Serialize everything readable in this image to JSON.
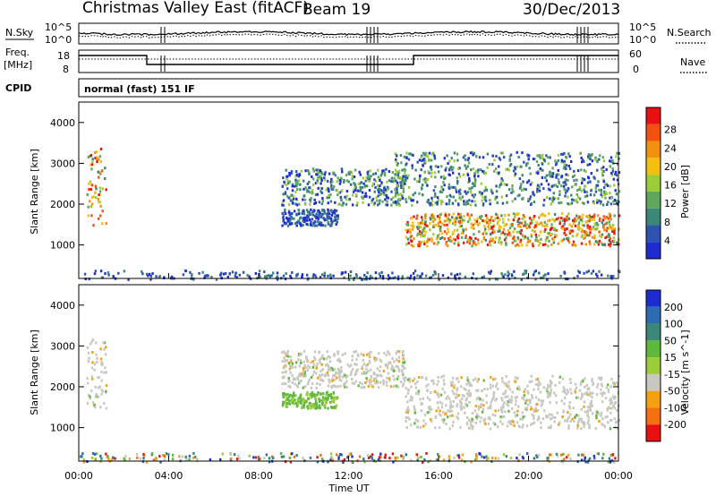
{
  "header": {
    "site": "Christmas Valley East (fitACF)",
    "beam": "Beam 19",
    "date": "30/Dec/2013"
  },
  "strip_sky": {
    "left_label": "N.Sky",
    "right_label": "N.Search",
    "left_ticks": [
      "10^5",
      "10^0"
    ],
    "right_ticks": [
      "10^5",
      "10^0"
    ]
  },
  "strip_freq": {
    "left_label_1": "Freq.",
    "left_label_2": "[MHz]",
    "right_label": "Nave",
    "left_ticks": [
      "18",
      "8"
    ],
    "right_ticks": [
      "60",
      "0"
    ]
  },
  "cpid": {
    "label": "CPID",
    "mode": "normal (fast) 151 IF"
  },
  "chart_data": [
    {
      "type": "heatmap",
      "ylabel": "Slant Range [km]",
      "xlabel": "Time UT",
      "x_ticks": [
        "00:00",
        "04:00",
        "08:00",
        "12:00",
        "16:00",
        "20:00",
        "00:00"
      ],
      "y_ticks": [
        "1000",
        "2000",
        "3000",
        "4000"
      ],
      "x_range_hours": [
        0,
        24
      ],
      "y_range_km": [
        180,
        4500
      ],
      "colorbar_label": "Power [dB]",
      "colorbar_ticks": [
        "4",
        "8",
        "12",
        "16",
        "20",
        "24",
        "28"
      ],
      "colorbar_colors": [
        "#1c2cd0",
        "#2c54b0",
        "#3c8878",
        "#5ea85e",
        "#9ccc3c",
        "#f4c010",
        "#f49010",
        "#f45010",
        "#e81010"
      ],
      "features": [
        {
          "name": "early-echo",
          "t": [
            0.3,
            1.2
          ],
          "r": [
            1500,
            3400
          ],
          "level": "high"
        },
        {
          "name": "band-upper",
          "t": [
            9.0,
            14.5
          ],
          "r": [
            2000,
            2900
          ],
          "level": "mid"
        },
        {
          "name": "band-lower",
          "t": [
            9.0,
            11.5
          ],
          "r": [
            1500,
            1900
          ],
          "level": "low"
        },
        {
          "name": "strong-evening",
          "t": [
            14.5,
            24.0
          ],
          "r": [
            1000,
            1800
          ],
          "level": "high"
        },
        {
          "name": "evening-upper",
          "t": [
            14.0,
            24.0
          ],
          "r": [
            2000,
            3300
          ],
          "level": "mid"
        },
        {
          "name": "near-range",
          "t": [
            0.0,
            24.0
          ],
          "r": [
            180,
            400
          ],
          "level": "low"
        }
      ]
    },
    {
      "type": "heatmap",
      "ylabel": "Slant Range [km]",
      "xlabel": "Time UT",
      "x_ticks": [
        "00:00",
        "04:00",
        "08:00",
        "12:00",
        "16:00",
        "20:00",
        "00:00"
      ],
      "y_ticks": [
        "1000",
        "2000",
        "3000",
        "4000"
      ],
      "x_range_hours": [
        0,
        24
      ],
      "y_range_km": [
        180,
        4500
      ],
      "colorbar_label": "Velocity [m s^-1]",
      "colorbar_ticks": [
        "200",
        "100",
        "50",
        "15",
        "-15",
        "-50",
        "-100",
        "-200"
      ],
      "colorbar_colors": [
        "#1c2cd0",
        "#2c6cb0",
        "#3c8878",
        "#5eb83c",
        "#9ccc3c",
        "#c8c8c0",
        "#f4a010",
        "#f47010",
        "#e81010"
      ],
      "features": [
        {
          "name": "ground-scatter-early",
          "t": [
            0.3,
            1.2
          ],
          "r": [
            1500,
            3200
          ],
          "level": "gs"
        },
        {
          "name": "band-upper",
          "t": [
            9.0,
            14.5
          ],
          "r": [
            2000,
            2900
          ],
          "level": "gs"
        },
        {
          "name": "band-lower",
          "t": [
            9.0,
            11.5
          ],
          "r": [
            1500,
            1900
          ],
          "level": "pos"
        },
        {
          "name": "evening-gs",
          "t": [
            14.5,
            24.0
          ],
          "r": [
            1000,
            2300
          ],
          "level": "gs"
        },
        {
          "name": "near-range",
          "t": [
            0.0,
            24.0
          ],
          "r": [
            180,
            400
          ],
          "level": "mixed"
        }
      ]
    }
  ]
}
